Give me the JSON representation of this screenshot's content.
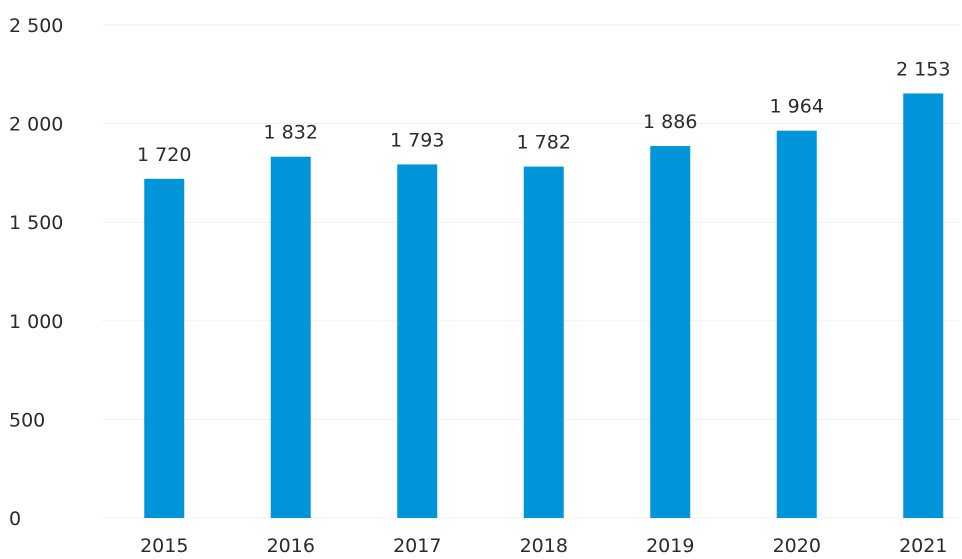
{
  "chart_data": {
    "type": "bar",
    "categories": [
      "2015",
      "2016",
      "2017",
      "2018",
      "2019",
      "2020",
      "2021"
    ],
    "values": [
      1720,
      1832,
      1793,
      1782,
      1886,
      1964,
      2153
    ],
    "value_labels": [
      "1 720",
      "1 832",
      "1 793",
      "1 782",
      "1 886",
      "1 964",
      "2 153"
    ],
    "y_ticks": [
      0,
      500,
      1000,
      1500,
      2000,
      2500
    ],
    "y_tick_labels": [
      "0",
      "500",
      "1 000",
      "1 500",
      "2 000",
      "2 500"
    ],
    "title": "",
    "xlabel": "",
    "ylabel": "",
    "ylim": [
      0,
      2500
    ],
    "grid": true,
    "bar_color": "#0095d9"
  }
}
